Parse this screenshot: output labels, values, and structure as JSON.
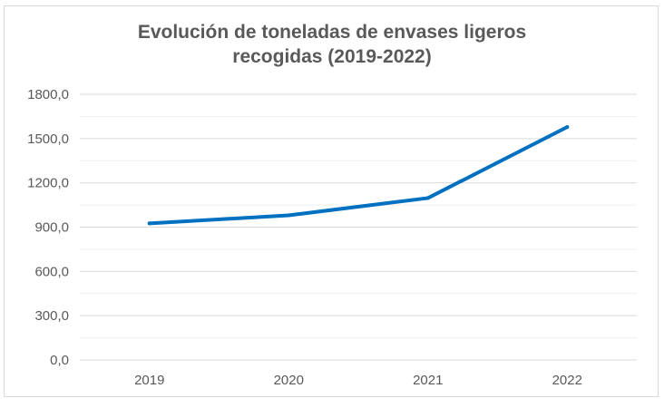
{
  "chart_data": {
    "type": "line",
    "title": "Evolución de toneladas de envases ligeros\nrecogidas (2019-2022)",
    "xlabel": "",
    "ylabel": "",
    "categories": [
      "2019",
      "2020",
      "2021",
      "2022"
    ],
    "series": [
      {
        "values": [
          925,
          980,
          1097,
          1578
        ]
      }
    ],
    "ylim": [
      0,
      1800
    ],
    "yticks": [
      0,
      300,
      600,
      900,
      1200,
      1500,
      1800
    ],
    "ytick_labels": [
      "0,0",
      "300,0",
      "600,0",
      "900,0",
      "1200,0",
      "1500,0",
      "1800,0"
    ],
    "grid": true,
    "minor_grid": true,
    "legend": "none",
    "colors": {
      "line": "#0070c0",
      "grid": "#d9d9d9",
      "minor_grid": "#efefef",
      "text": "#595959"
    }
  }
}
